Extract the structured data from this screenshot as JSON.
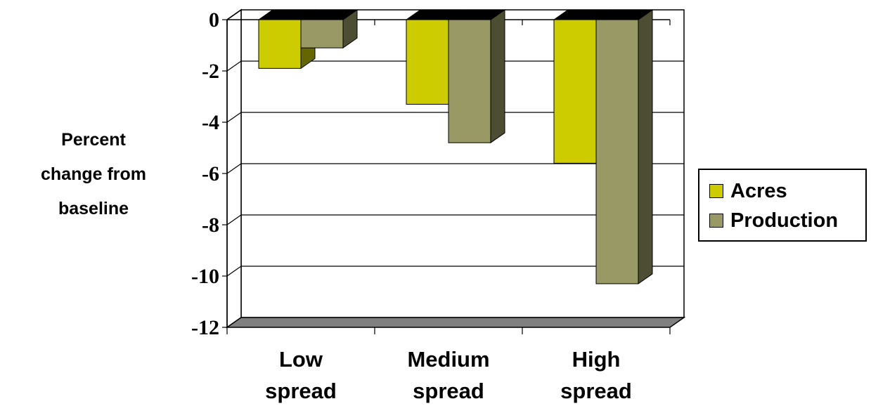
{
  "chart_data": {
    "type": "bar",
    "ylabel_lines": [
      "Percent",
      "change from",
      "baseline"
    ],
    "categories": [
      {
        "label": "Low spread",
        "lines": [
          "Low",
          "spread"
        ]
      },
      {
        "label": "Medium spread",
        "lines": [
          "Medium",
          "spread"
        ]
      },
      {
        "label": "High spread",
        "lines": [
          "High",
          "spread"
        ]
      }
    ],
    "series": [
      {
        "name": "Acres",
        "values": [
          -1.9,
          -3.3,
          -5.6
        ],
        "color": "#cccc00"
      },
      {
        "name": "Production",
        "values": [
          -1.1,
          -4.8,
          -10.3
        ],
        "color": "#999966"
      }
    ],
    "ylim": [
      -12,
      0
    ],
    "yticks": [
      0,
      -2,
      -4,
      -6,
      -8,
      -10,
      -12
    ],
    "ytick_labels": [
      "0",
      "-2",
      "-4",
      "-6",
      "-8",
      "-10",
      "-12"
    ],
    "grid": true,
    "legend_position": "right",
    "style": "3d-clustered-column"
  }
}
